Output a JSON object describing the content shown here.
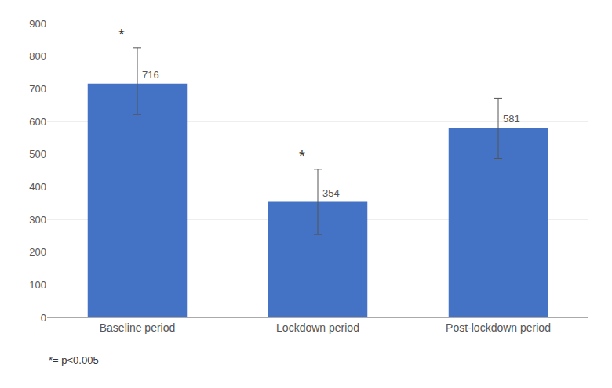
{
  "chart_data": {
    "type": "bar",
    "categories": [
      "Baseline period",
      "Lockdown period",
      "Post-lockdown period"
    ],
    "values": [
      716,
      354,
      581
    ],
    "error_upper": [
      110,
      100,
      90
    ],
    "error_lower": [
      95,
      100,
      95
    ],
    "color": "#4472C4",
    "data_labels": true,
    "ylim": [
      0,
      900
    ],
    "yticks": [
      0,
      100,
      200,
      300,
      400,
      500,
      600,
      700,
      800,
      900
    ],
    "grid": true,
    "annotations": [
      {
        "text": "*",
        "category": "Baseline period"
      },
      {
        "text": "*",
        "category": "Lockdown period"
      }
    ],
    "footnote": "*= p<0.005"
  }
}
